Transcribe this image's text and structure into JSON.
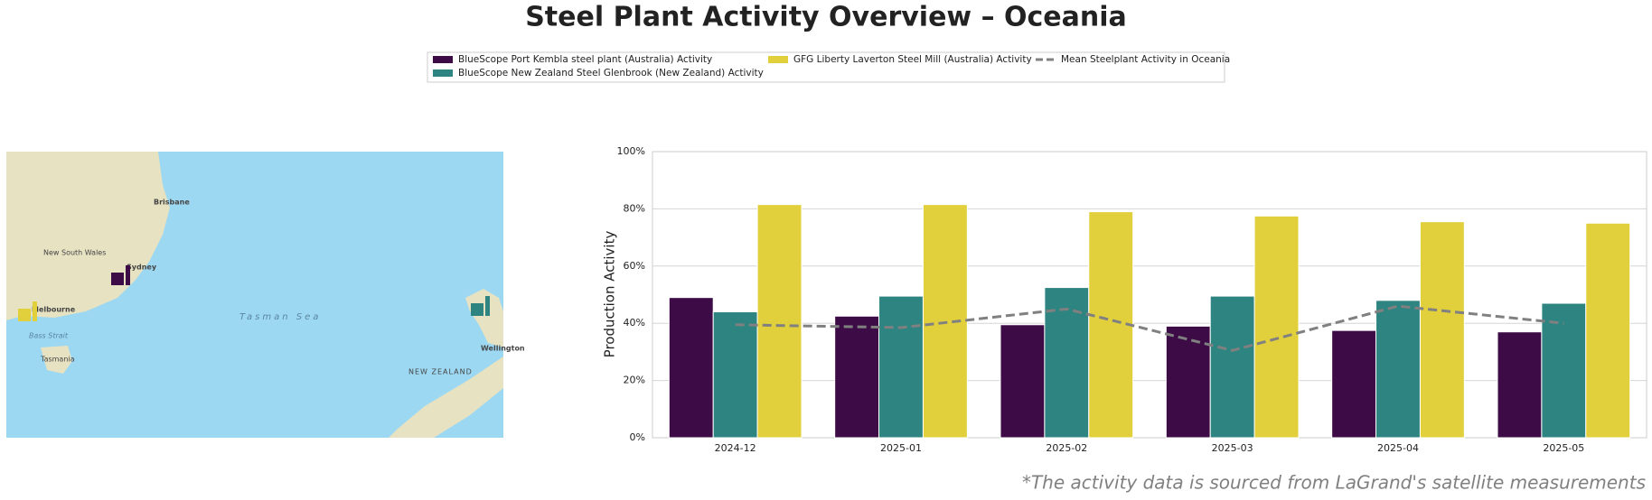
{
  "chart_data": {
    "type": "bar",
    "title": "Steel Plant Activity Overview – Oceania",
    "categories": [
      "2024-12",
      "2025-01",
      "2025-02",
      "2025-03",
      "2025-04",
      "2025-05"
    ],
    "series": [
      {
        "name": "BlueScope Port Kembla steel plant (Australia) Activity",
        "color": "#3d0c46",
        "values": [
          49,
          42.5,
          39.5,
          39,
          37.5,
          37
        ]
      },
      {
        "name": "BlueScope New Zealand Steel Glenbrook (New Zealand) Activity",
        "color": "#2d8480",
        "values": [
          44,
          49.5,
          52.5,
          49.5,
          48,
          47
        ]
      },
      {
        "name": "GFG Liberty Laverton Steel Mill (Australia) Activity",
        "color": "#e1d03c",
        "values": [
          81.5,
          81.5,
          79,
          77.5,
          75.5,
          75
        ]
      },
      {
        "name": "Mean Steelplant Activity in Oceania",
        "color": "#808080",
        "type": "line",
        "dashed": true,
        "values": [
          39.5,
          38.5,
          45,
          30.5,
          46,
          40
        ]
      }
    ],
    "ylabel": "Production Activity",
    "ylim": [
      0,
      100
    ],
    "yticks": [
      {
        "value": 0,
        "label": "0%"
      },
      {
        "value": 20,
        "label": "20%"
      },
      {
        "value": 40,
        "label": "40%"
      },
      {
        "value": 60,
        "label": "60%"
      },
      {
        "value": 80,
        "label": "80%"
      },
      {
        "value": 100,
        "label": "100%"
      }
    ],
    "grid": true,
    "footnote": "*The activity data is sourced from LaGrand's satellite measurements"
  },
  "map": {
    "labels": [
      "Brisbane",
      "New South Wales",
      "Sydney",
      "Melbourne",
      "Bass Strait",
      "Tasmania",
      "Tasman Sea",
      "NEW ZEALAND",
      "Wellington"
    ]
  }
}
